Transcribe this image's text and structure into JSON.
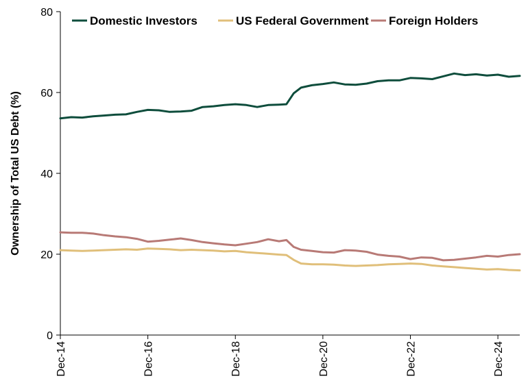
{
  "chart_data": {
    "type": "line",
    "title": "",
    "xlabel": "",
    "ylabel": "Ownership of Total US Debt (%)",
    "ylim": [
      0,
      80
    ],
    "yticks": [
      0,
      20,
      40,
      60,
      80
    ],
    "xlim": [
      "2014-12",
      "2025-06"
    ],
    "xticks": [
      "Dec-14",
      "Dec-16",
      "Dec-18",
      "Dec-20",
      "Dec-22",
      "Dec-24"
    ],
    "grid": false,
    "legend_position": "top",
    "series": [
      {
        "name": "Domestic Investors",
        "color": "#0e4d3c",
        "points": [
          [
            "2014-12",
            53.6
          ],
          [
            "2015-03",
            53.9
          ],
          [
            "2015-06",
            53.8
          ],
          [
            "2015-09",
            54.1
          ],
          [
            "2015-12",
            54.3
          ],
          [
            "2016-03",
            54.5
          ],
          [
            "2016-06",
            54.6
          ],
          [
            "2016-09",
            55.2
          ],
          [
            "2016-12",
            55.7
          ],
          [
            "2017-03",
            55.6
          ],
          [
            "2017-06",
            55.2
          ],
          [
            "2017-09",
            55.3
          ],
          [
            "2017-12",
            55.5
          ],
          [
            "2018-03",
            56.4
          ],
          [
            "2018-06",
            56.6
          ],
          [
            "2018-09",
            56.9
          ],
          [
            "2018-12",
            57.1
          ],
          [
            "2019-03",
            56.9
          ],
          [
            "2019-06",
            56.4
          ],
          [
            "2019-09",
            56.9
          ],
          [
            "2019-12",
            57.0
          ],
          [
            "2020-02",
            57.1
          ],
          [
            "2020-04",
            59.8
          ],
          [
            "2020-06",
            61.2
          ],
          [
            "2020-09",
            61.8
          ],
          [
            "2020-12",
            62.1
          ],
          [
            "2021-03",
            62.5
          ],
          [
            "2021-06",
            62.0
          ],
          [
            "2021-09",
            61.9
          ],
          [
            "2021-12",
            62.2
          ],
          [
            "2022-03",
            62.8
          ],
          [
            "2022-06",
            63.0
          ],
          [
            "2022-09",
            63.0
          ],
          [
            "2022-12",
            63.6
          ],
          [
            "2023-03",
            63.5
          ],
          [
            "2023-06",
            63.3
          ],
          [
            "2023-09",
            64.0
          ],
          [
            "2023-12",
            64.7
          ],
          [
            "2024-03",
            64.3
          ],
          [
            "2024-06",
            64.5
          ],
          [
            "2024-09",
            64.2
          ],
          [
            "2024-12",
            64.4
          ],
          [
            "2025-03",
            63.9
          ],
          [
            "2025-06",
            64.1
          ]
        ]
      },
      {
        "name": "US Federal Government",
        "color": "#e0bf7a",
        "points": [
          [
            "2014-12",
            21.0
          ],
          [
            "2015-03",
            20.9
          ],
          [
            "2015-06",
            20.8
          ],
          [
            "2015-09",
            20.9
          ],
          [
            "2015-12",
            21.0
          ],
          [
            "2016-03",
            21.1
          ],
          [
            "2016-06",
            21.2
          ],
          [
            "2016-09",
            21.1
          ],
          [
            "2016-12",
            21.4
          ],
          [
            "2017-03",
            21.3
          ],
          [
            "2017-06",
            21.2
          ],
          [
            "2017-09",
            21.0
          ],
          [
            "2017-12",
            21.1
          ],
          [
            "2018-03",
            21.0
          ],
          [
            "2018-06",
            20.9
          ],
          [
            "2018-09",
            20.7
          ],
          [
            "2018-12",
            20.8
          ],
          [
            "2019-03",
            20.5
          ],
          [
            "2019-06",
            20.3
          ],
          [
            "2019-09",
            20.1
          ],
          [
            "2019-12",
            19.9
          ],
          [
            "2020-02",
            19.8
          ],
          [
            "2020-04",
            18.6
          ],
          [
            "2020-06",
            17.7
          ],
          [
            "2020-09",
            17.5
          ],
          [
            "2020-12",
            17.5
          ],
          [
            "2021-03",
            17.4
          ],
          [
            "2021-06",
            17.2
          ],
          [
            "2021-09",
            17.1
          ],
          [
            "2021-12",
            17.2
          ],
          [
            "2022-03",
            17.3
          ],
          [
            "2022-06",
            17.5
          ],
          [
            "2022-09",
            17.6
          ],
          [
            "2022-12",
            17.7
          ],
          [
            "2023-03",
            17.6
          ],
          [
            "2023-06",
            17.2
          ],
          [
            "2023-09",
            17.0
          ],
          [
            "2023-12",
            16.8
          ],
          [
            "2024-03",
            16.6
          ],
          [
            "2024-06",
            16.4
          ],
          [
            "2024-09",
            16.2
          ],
          [
            "2024-12",
            16.3
          ],
          [
            "2025-03",
            16.1
          ],
          [
            "2025-06",
            16.0
          ]
        ]
      },
      {
        "name": "Foreign Holders",
        "color": "#b87a76",
        "points": [
          [
            "2014-12",
            25.4
          ],
          [
            "2015-03",
            25.3
          ],
          [
            "2015-06",
            25.3
          ],
          [
            "2015-09",
            25.1
          ],
          [
            "2015-12",
            24.7
          ],
          [
            "2016-03",
            24.4
          ],
          [
            "2016-06",
            24.2
          ],
          [
            "2016-09",
            23.8
          ],
          [
            "2016-12",
            23.1
          ],
          [
            "2017-03",
            23.3
          ],
          [
            "2017-06",
            23.6
          ],
          [
            "2017-09",
            23.9
          ],
          [
            "2017-12",
            23.5
          ],
          [
            "2018-03",
            23.0
          ],
          [
            "2018-06",
            22.7
          ],
          [
            "2018-09",
            22.4
          ],
          [
            "2018-12",
            22.2
          ],
          [
            "2019-03",
            22.6
          ],
          [
            "2019-06",
            23.0
          ],
          [
            "2019-09",
            23.7
          ],
          [
            "2019-12",
            23.2
          ],
          [
            "2020-02",
            23.5
          ],
          [
            "2020-04",
            21.8
          ],
          [
            "2020-06",
            21.1
          ],
          [
            "2020-09",
            20.8
          ],
          [
            "2020-12",
            20.5
          ],
          [
            "2021-03",
            20.4
          ],
          [
            "2021-06",
            21.0
          ],
          [
            "2021-09",
            20.9
          ],
          [
            "2021-12",
            20.6
          ],
          [
            "2022-03",
            19.9
          ],
          [
            "2022-06",
            19.6
          ],
          [
            "2022-09",
            19.4
          ],
          [
            "2022-12",
            18.8
          ],
          [
            "2023-03",
            19.2
          ],
          [
            "2023-06",
            19.1
          ],
          [
            "2023-09",
            18.5
          ],
          [
            "2023-12",
            18.6
          ],
          [
            "2024-03",
            18.9
          ],
          [
            "2024-06",
            19.2
          ],
          [
            "2024-09",
            19.6
          ],
          [
            "2024-12",
            19.4
          ],
          [
            "2025-03",
            19.8
          ],
          [
            "2025-06",
            20.0
          ]
        ]
      }
    ]
  }
}
